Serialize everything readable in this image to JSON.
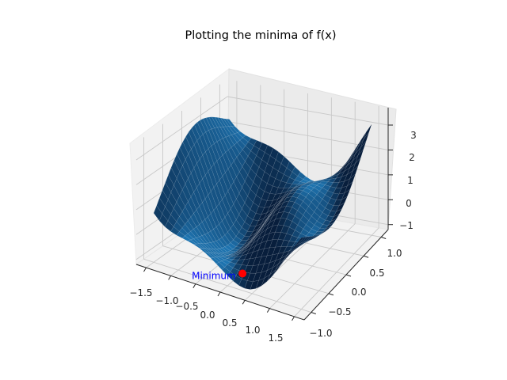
{
  "chart_data": {
    "type": "surface3d",
    "title": "Plotting the minima of f(x)",
    "xlabel": "",
    "ylabel": "",
    "zlabel": "",
    "xlim": [
      -1.7,
      1.7
    ],
    "ylim": [
      -1.2,
      1.2
    ],
    "zlim": [
      -1.2,
      3.7
    ],
    "x_ticks": [
      "−1.5",
      "−1.0",
      "−0.5",
      "0.0",
      "0.5",
      "1.0",
      "1.5"
    ],
    "y_ticks": [
      "−1.0",
      "−0.5",
      "0.0",
      "0.5",
      "1.0"
    ],
    "z_ticks": [
      "−1",
      "0",
      "1",
      "2",
      "3"
    ],
    "grid": true,
    "surface_color": "#1f77b4",
    "minimum": {
      "x": 0.09,
      "y": -0.71,
      "z": -1.03,
      "label": "Minimum",
      "marker_color": "#ff0000",
      "label_color": "#0000ff"
    }
  }
}
